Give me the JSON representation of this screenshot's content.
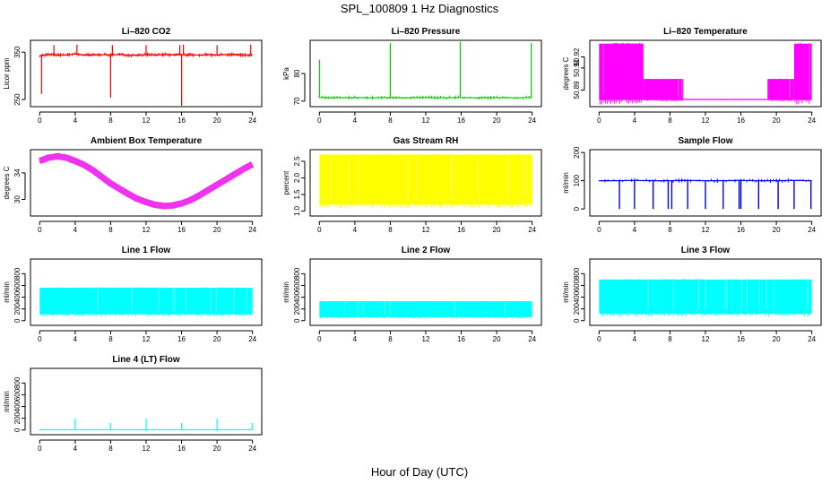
{
  "figure": {
    "title": "SPL_100809  1 Hz Diagnostics",
    "xlabel": "Hour of Day (UTC)"
  },
  "chart_data": [
    {
      "type": "line",
      "title": "Li–820 CO2",
      "ylabel": "Licor ppm",
      "color": "#ff0000",
      "xlim": [
        0,
        24
      ],
      "ylim": [
        235,
        375
      ],
      "xticks": [
        0,
        4,
        8,
        12,
        16,
        20,
        24
      ],
      "yticks": [
        {
          "v": 250,
          "label": "250"
        },
        {
          "v": 350,
          "label": "350"
        }
      ],
      "x": [
        0,
        1,
        2,
        3,
        4,
        5,
        6,
        7,
        8,
        9,
        10,
        11,
        12,
        13,
        14,
        15,
        16,
        17,
        18,
        19,
        20,
        21,
        22,
        23,
        24
      ],
      "y": [
        343,
        345,
        344,
        344,
        346,
        344,
        344,
        345,
        344,
        345,
        344,
        344,
        345,
        344,
        345,
        344,
        345,
        344,
        344,
        345,
        344,
        345,
        345,
        344,
        344
      ],
      "spikes": [
        {
          "x": 0.2,
          "y": 262
        },
        {
          "x": 1.6,
          "y": 365
        },
        {
          "x": 4.2,
          "y": 366
        },
        {
          "x": 8.0,
          "y": 254
        },
        {
          "x": 8.2,
          "y": 365
        },
        {
          "x": 12.0,
          "y": 365
        },
        {
          "x": 15.8,
          "y": 365
        },
        {
          "x": 16.0,
          "y": 237
        },
        {
          "x": 16.2,
          "y": 366
        },
        {
          "x": 20.0,
          "y": 365
        },
        {
          "x": 23.8,
          "y": 366
        }
      ]
    },
    {
      "type": "line",
      "title": "Li–820 Pressure",
      "ylabel": "kPa",
      "color": "#00cc00",
      "xlim": [
        0,
        24
      ],
      "ylim": [
        68,
        92
      ],
      "xticks": [
        0,
        4,
        8,
        12,
        16,
        20,
        24
      ],
      "yticks": [
        {
          "v": 70,
          "label": "70"
        },
        {
          "v": 80,
          "label": "80"
        }
      ],
      "x": [
        0,
        2,
        4,
        6,
        8,
        10,
        12,
        14,
        16,
        18,
        20,
        22,
        24
      ],
      "y": [
        71.3,
        71.2,
        71.3,
        71.2,
        71.3,
        71.2,
        71.3,
        71.2,
        71.3,
        71.2,
        71.3,
        71.2,
        71.3
      ],
      "spikes": [
        {
          "x": 0.0,
          "y": 85
        },
        {
          "x": 8.0,
          "y": 91
        },
        {
          "x": 15.9,
          "y": 91.5
        },
        {
          "x": 23.9,
          "y": 91
        }
      ]
    },
    {
      "type": "band",
      "title": "Li–820 Temperature",
      "ylabel": "degrees C",
      "color": "#ff00ff",
      "xlim": [
        0,
        24
      ],
      "ylim": [
        50.875,
        50.935
      ],
      "xticks": [
        0,
        4,
        8,
        12,
        16,
        20,
        24
      ],
      "yticks": [
        {
          "v": 50.89,
          "label": "50.89"
        },
        {
          "v": 50.91,
          "label": "50.91"
        },
        {
          "v": 50.92,
          "label": "50.92"
        }
      ],
      "segments": [
        {
          "x0": 0,
          "x1": 5,
          "lo": 50.881,
          "hi": 50.932
        },
        {
          "x0": 5,
          "x1": 9.5,
          "lo": 50.881,
          "hi": 50.9
        },
        {
          "x0": 9.5,
          "x1": 19,
          "lo": 50.881,
          "hi": 50.882
        },
        {
          "x0": 19,
          "x1": 22,
          "lo": 50.881,
          "hi": 50.9
        },
        {
          "x0": 22,
          "x1": 24,
          "lo": 50.881,
          "hi": 50.932
        }
      ]
    },
    {
      "type": "line",
      "title": "Ambient Box Temperature",
      "ylabel": "degrees C",
      "color": "#ee33ee",
      "xlim": [
        0,
        24
      ],
      "ylim": [
        27.5,
        37.5
      ],
      "xticks": [
        0,
        4,
        8,
        12,
        16,
        20,
        24
      ],
      "yticks": [
        {
          "v": 30,
          "label": "30"
        },
        {
          "v": 34,
          "label": "34"
        }
      ],
      "x": [
        0,
        1,
        2,
        3,
        4,
        5,
        6,
        7,
        8,
        9,
        10,
        11,
        12,
        13,
        14,
        15,
        16,
        17,
        18,
        19,
        20,
        21,
        22,
        23,
        24
      ],
      "y": [
        35.8,
        36.3,
        36.5,
        36.3,
        35.8,
        35.2,
        34.4,
        33.4,
        32.4,
        31.6,
        30.8,
        30.1,
        29.6,
        29.2,
        29.0,
        29.1,
        29.4,
        29.9,
        30.6,
        31.4,
        32.2,
        33.0,
        33.8,
        34.6,
        35.3
      ],
      "band": 0.35
    },
    {
      "type": "band",
      "title": "Gas Stream RH",
      "ylabel": "percent",
      "color": "#ffff00",
      "xlim": [
        0,
        24
      ],
      "ylim": [
        0.85,
        2.85
      ],
      "xticks": [
        0,
        4,
        8,
        12,
        16,
        20,
        24
      ],
      "yticks": [
        {
          "v": 1.0,
          "label": "1.0"
        },
        {
          "v": 1.5,
          "label": "1.5"
        },
        {
          "v": 2.0,
          "label": "2.0"
        },
        {
          "v": 2.5,
          "label": "2.5"
        }
      ],
      "segments": [
        {
          "x0": 0,
          "x1": 24,
          "lo": 1.2,
          "hi": 2.7
        }
      ]
    },
    {
      "type": "line",
      "title": "Sample Flow",
      "ylabel": "ml/min",
      "color": "#0000ff",
      "xlim": [
        0,
        24
      ],
      "ylim": [
        -25,
        210
      ],
      "xticks": [
        0,
        4,
        8,
        12,
        16,
        20,
        24
      ],
      "yticks": [
        {
          "v": 0,
          "label": "0"
        },
        {
          "v": 100,
          "label": "100"
        },
        {
          "v": 200,
          "label": "200"
        }
      ],
      "x": [
        0,
        2,
        4,
        6,
        8,
        10,
        12,
        14,
        16,
        18,
        20,
        22,
        24
      ],
      "y": [
        100,
        100,
        101,
        100,
        100,
        101,
        100,
        100,
        101,
        100,
        100,
        101,
        100
      ],
      "dips": [
        2.3,
        4.0,
        6.1,
        7.8,
        8.2,
        10.0,
        12.0,
        14.0,
        15.8,
        16.0,
        18.0,
        20.2,
        22.0,
        23.9
      ]
    },
    {
      "type": "band",
      "title": "Line 1 Flow",
      "ylabel": "ml/min",
      "color": "#00ffff",
      "xlim": [
        0,
        24
      ],
      "ylim": [
        -80,
        1050
      ],
      "xticks": [
        0,
        4,
        8,
        12,
        16,
        20,
        24
      ],
      "yticks": [
        {
          "v": 0,
          "label": "0"
        },
        {
          "v": 200,
          "label": "200"
        },
        {
          "v": 400,
          "label": "400"
        },
        {
          "v": 600,
          "label": "600"
        },
        {
          "v": 800,
          "label": "800"
        }
      ],
      "segments": [
        {
          "x0": 0,
          "x1": 24,
          "lo": 110,
          "hi": 560
        }
      ]
    },
    {
      "type": "band",
      "title": "Line 2 Flow",
      "ylabel": "ml/min",
      "color": "#00ffff",
      "xlim": [
        0,
        24
      ],
      "ylim": [
        -80,
        1050
      ],
      "xticks": [
        0,
        4,
        8,
        12,
        16,
        20,
        24
      ],
      "yticks": [
        {
          "v": 0,
          "label": "0"
        },
        {
          "v": 200,
          "label": "200"
        },
        {
          "v": 400,
          "label": "400"
        },
        {
          "v": 600,
          "label": "600"
        },
        {
          "v": 800,
          "label": "800"
        }
      ],
      "segments": [
        {
          "x0": 0,
          "x1": 24,
          "lo": 60,
          "hi": 330
        }
      ]
    },
    {
      "type": "band",
      "title": "Line 3 Flow",
      "ylabel": "ml/min",
      "color": "#00ffff",
      "xlim": [
        0,
        24
      ],
      "ylim": [
        -80,
        1050
      ],
      "xticks": [
        0,
        4,
        8,
        12,
        16,
        20,
        24
      ],
      "yticks": [
        {
          "v": 0,
          "label": "0"
        },
        {
          "v": 200,
          "label": "200"
        },
        {
          "v": 400,
          "label": "400"
        },
        {
          "v": 600,
          "label": "600"
        },
        {
          "v": 800,
          "label": "800"
        }
      ],
      "segments": [
        {
          "x0": 0,
          "x1": 24,
          "lo": 120,
          "hi": 700
        }
      ]
    },
    {
      "type": "line",
      "title": "Line 4 (LT) Flow",
      "ylabel": "ml/min",
      "color": "#00ffff",
      "xlim": [
        0,
        24
      ],
      "ylim": [
        -80,
        1050
      ],
      "xticks": [
        0,
        4,
        8,
        12,
        16,
        20,
        24
      ],
      "yticks": [
        {
          "v": 0,
          "label": "0"
        },
        {
          "v": 200,
          "label": "200"
        },
        {
          "v": 400,
          "label": "400"
        },
        {
          "v": 600,
          "label": "600"
        },
        {
          "v": 800,
          "label": "800"
        }
      ],
      "x": [
        0,
        24
      ],
      "y": [
        5,
        5
      ],
      "spikes": [
        {
          "x": 4.0,
          "y": 200
        },
        {
          "x": 8.0,
          "y": 120
        },
        {
          "x": 12.0,
          "y": 200
        },
        {
          "x": 16.0,
          "y": 120
        },
        {
          "x": 20.0,
          "y": 200
        },
        {
          "x": 24.0,
          "y": 120
        }
      ]
    }
  ]
}
